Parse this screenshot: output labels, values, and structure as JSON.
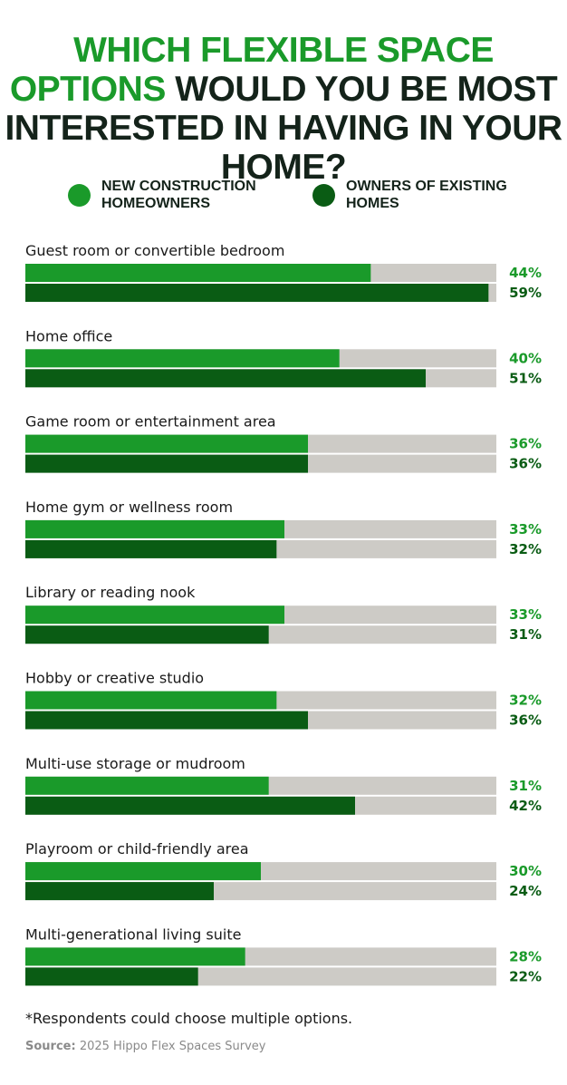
{
  "title": {
    "highlight": "Which flexible space options",
    "rest": "would you be most interested in having in your home?"
  },
  "legend": {
    "new": "NEW CONSTRUCTION HOMEOWNERS",
    "existing": "OWNERS OF EXISTING HOMES"
  },
  "colors": {
    "new": "#1a9a2a",
    "existing": "#0a5c14",
    "track": "#cdcbc6",
    "label": "#1a1a1a"
  },
  "chart_data": {
    "type": "bar",
    "orientation": "horizontal",
    "title": "Which flexible space options would you be most interested in having in your home?",
    "xlim": [
      0,
      60
    ],
    "categories": [
      "Guest room or convertible bedroom",
      "Home office",
      "Game room or entertainment area",
      "Home gym or wellness room",
      "Library or reading nook",
      "Hobby or creative studio",
      "Multi-use storage or mudroom",
      "Playroom or child-friendly area",
      "Multi-generational living suite"
    ],
    "series": [
      {
        "name": "NEW CONSTRUCTION HOMEOWNERS",
        "values": [
          44,
          40,
          36,
          33,
          33,
          32,
          31,
          30,
          28
        ],
        "labels": [
          "44%",
          "40%",
          "36%",
          "33%",
          "33%",
          "32%",
          "31%",
          "30%",
          "28%"
        ]
      },
      {
        "name": "OWNERS OF EXISTING HOMES",
        "values": [
          59,
          51,
          36,
          32,
          31,
          36,
          42,
          24,
          22
        ],
        "labels": [
          "59%",
          "51%",
          "36%",
          "32%",
          "31%",
          "36%",
          "42%",
          "24%",
          "22%"
        ]
      }
    ]
  },
  "footnote": "*Respondents could choose multiple options.",
  "source": {
    "label": "Source:",
    "text": "2025 Hippo Flex Spaces Survey"
  }
}
